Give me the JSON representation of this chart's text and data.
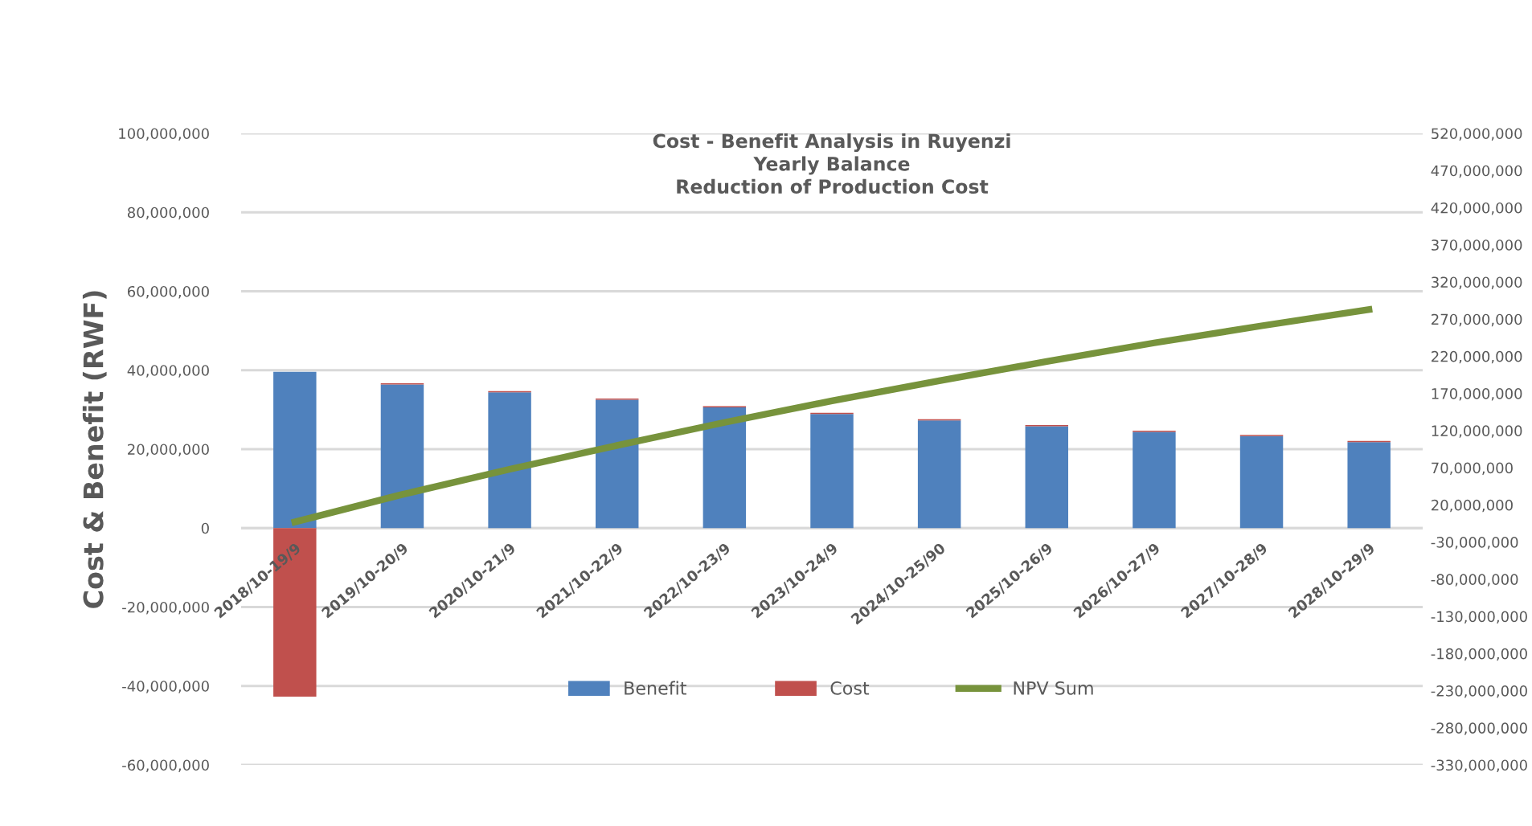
{
  "chart_data": {
    "type": "bar",
    "title": "Cost - Benefit Analysis in Ruyenzi\nYearly Balance\nReduction of Production Cost",
    "ylabel": "Cost & Benefit (RWF)",
    "stacked": true,
    "categories": [
      "2018/10-19/9",
      "2019/10-20/9",
      "2020/10-21/9",
      "2021/10-22/9",
      "2022/10-23/9",
      "2023/10-24/9",
      "2024/10-25/90",
      "2025/10-26/9",
      "2026/10-27/9",
      "2027/10-28/9",
      "2028/10-29/9"
    ],
    "series": [
      {
        "name": "Benefit",
        "color": "#4f81bd",
        "values": [
          39600000,
          36400000,
          34400000,
          32500000,
          30600000,
          28900000,
          27300000,
          25800000,
          24400000,
          23300000,
          21800000
        ]
      },
      {
        "name": "Cost",
        "color": "#c0504d",
        "values": [
          -42700000,
          300000,
          300000,
          300000,
          300000,
          300000,
          300000,
          300000,
          300000,
          300000,
          300000
        ]
      },
      {
        "name": "NPV Sum",
        "type": "line",
        "axis": "y2",
        "color": "#77933c",
        "line_style": "solid",
        "values": [
          -3000000,
          34000000,
          68000000,
          100000000,
          131000000,
          160000000,
          187000000,
          213000000,
          238000000,
          261000000,
          283000000
        ]
      }
    ],
    "ylim": [
      -60000000,
      100000000
    ],
    "yticks": [
      {
        "value": -60000000,
        "label": "-60,000,000"
      },
      {
        "value": -40000000,
        "label": "-40,000,000"
      },
      {
        "value": -20000000,
        "label": "-20,000,000"
      },
      {
        "value": 0,
        "label": "0"
      },
      {
        "value": 20000000,
        "label": "20,000,000"
      },
      {
        "value": 40000000,
        "label": "40,000,000"
      },
      {
        "value": 60000000,
        "label": "60,000,000"
      },
      {
        "value": 80000000,
        "label": "80,000,000"
      },
      {
        "value": 100000000,
        "label": "100,000,000"
      }
    ],
    "y2lim": [
      -330000000,
      520000000
    ],
    "y2ticks": [
      {
        "value": -330000000,
        "label": "-330,000,000"
      },
      {
        "value": -280000000,
        "label": "-280,000,000"
      },
      {
        "value": -230000000,
        "label": "-230,000,000"
      },
      {
        "value": -180000000,
        "label": "-180,000,000"
      },
      {
        "value": -130000000,
        "label": "-130,000,000"
      },
      {
        "value": -80000000,
        "label": "-80,000,000"
      },
      {
        "value": -30000000,
        "label": "-30,000,000"
      },
      {
        "value": 20000000,
        "label": "20,000,000"
      },
      {
        "value": 70000000,
        "label": "70,000,000"
      },
      {
        "value": 120000000,
        "label": "120,000,000"
      },
      {
        "value": 170000000,
        "label": "170,000,000"
      },
      {
        "value": 220000000,
        "label": "220,000,000"
      },
      {
        "value": 270000000,
        "label": "270,000,000"
      },
      {
        "value": 320000000,
        "label": "320,000,000"
      },
      {
        "value": 370000000,
        "label": "370,000,000"
      },
      {
        "value": 420000000,
        "label": "420,000,000"
      },
      {
        "value": 470000000,
        "label": "470,000,000"
      },
      {
        "value": 520000000,
        "label": "520,000,000"
      }
    ],
    "grid": "y",
    "legend": "bottom"
  }
}
